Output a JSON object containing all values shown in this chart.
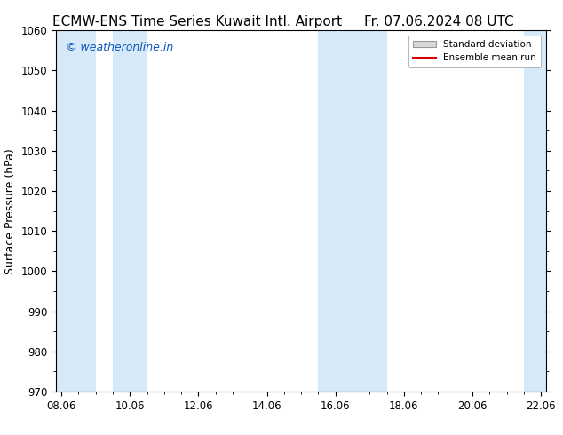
{
  "title_left": "ECMW-ENS Time Series Kuwait Intl. Airport",
  "title_right": "Fr. 07.06.2024 08 UTC",
  "ylabel": "Surface Pressure (hPa)",
  "ylim": [
    970,
    1060
  ],
  "yticks": [
    970,
    980,
    990,
    1000,
    1010,
    1020,
    1030,
    1040,
    1050,
    1060
  ],
  "xlim_start": -0.15,
  "xlim_end": 14.15,
  "xtick_labels": [
    "08.06",
    "10.06",
    "12.06",
    "14.06",
    "16.06",
    "18.06",
    "20.06",
    "22.06"
  ],
  "xtick_positions": [
    0,
    2,
    4,
    6,
    8,
    10,
    12,
    14
  ],
  "shaded_bands": [
    {
      "x_start": -0.15,
      "x_end": 1.0
    },
    {
      "x_start": 1.5,
      "x_end": 2.5
    },
    {
      "x_start": 7.5,
      "x_end": 9.5
    },
    {
      "x_start": 13.5,
      "x_end": 14.15
    }
  ],
  "band_color": "#d6e9f8",
  "background_color": "#ffffff",
  "watermark_text": "© weatheronline.in",
  "watermark_color": "#1155bb",
  "legend_std_label": "Standard deviation",
  "legend_mean_label": "Ensemble mean run",
  "legend_std_facecolor": "#d8d8d8",
  "legend_std_edgecolor": "#999999",
  "legend_mean_color": "#dd0000",
  "title_fontsize": 11,
  "ylabel_fontsize": 9,
  "tick_fontsize": 8.5,
  "watermark_fontsize": 9
}
